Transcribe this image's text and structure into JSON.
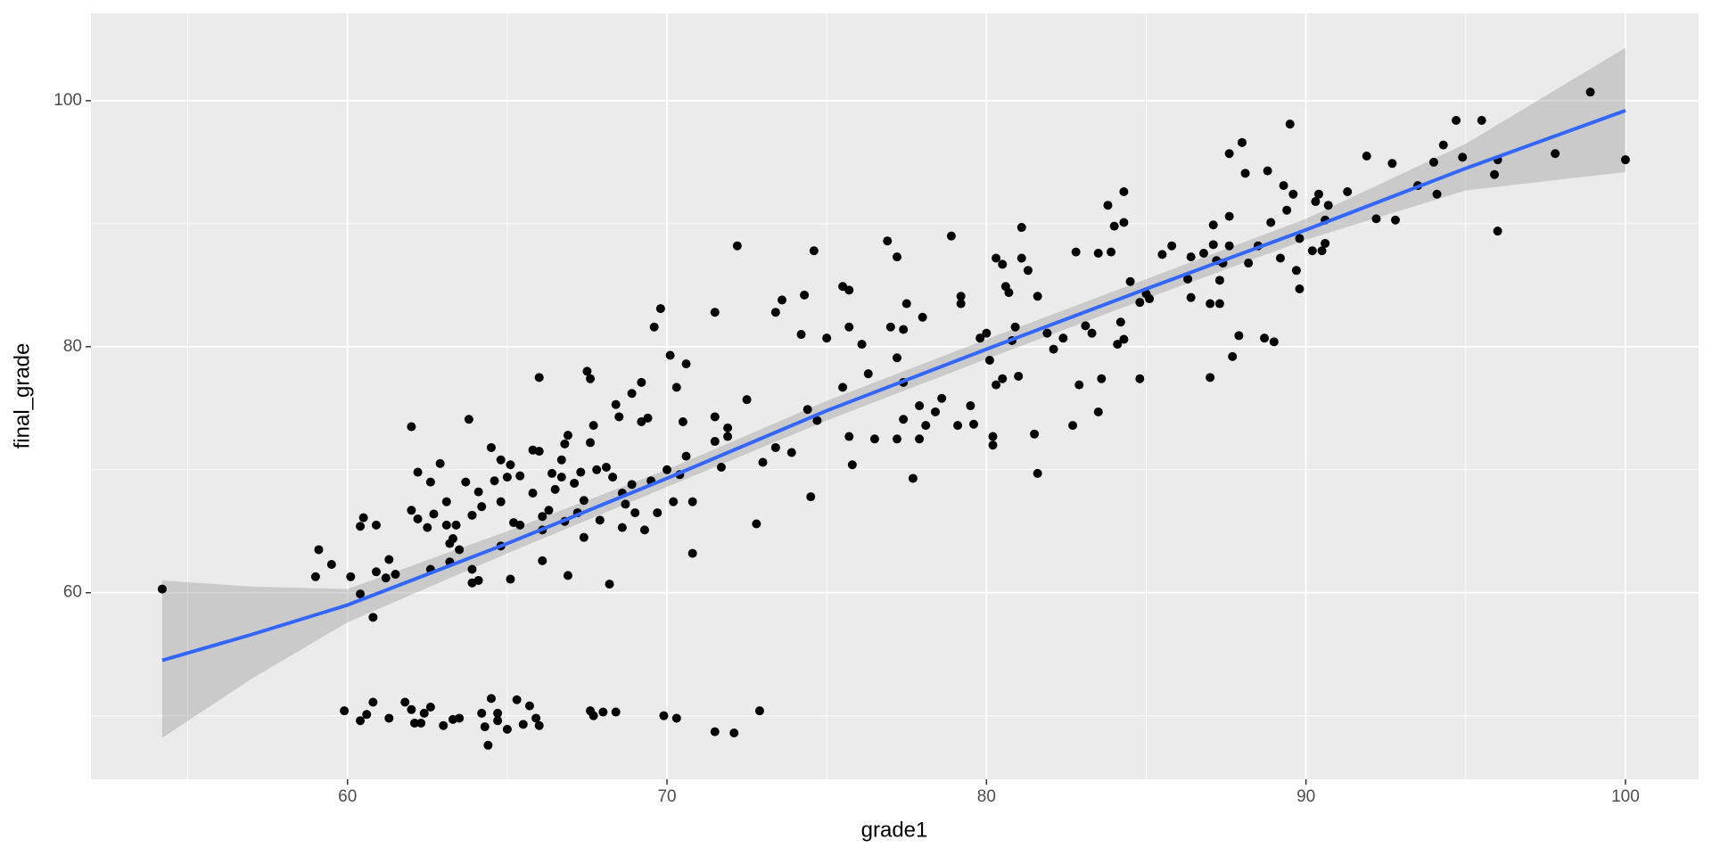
{
  "chart_data": {
    "type": "scatter",
    "x_label": "grade1",
    "y_label": "final_grade",
    "color": "#000000",
    "xlim": [
      51.97,
      102.29
    ],
    "ylim": [
      44.83,
      107.1
    ],
    "xticks": [
      60,
      70,
      80,
      90,
      100
    ],
    "yticks": [
      60,
      80,
      100
    ],
    "x_minor_ticks": [
      55,
      65,
      75,
      85,
      95
    ],
    "y_minor_ticks": [
      50,
      70,
      90
    ],
    "grid": true,
    "x": [
      54.2,
      59.9,
      60.4,
      60.6,
      60.8,
      61.3,
      61.8,
      62.0,
      62.1,
      62.3,
      62.4,
      62.6,
      63.0,
      63.3,
      63.5,
      64.2,
      64.3,
      64.4,
      64.5,
      64.7,
      64.7,
      65.0,
      65.3,
      65.5,
      65.7,
      65.9,
      66.0,
      67.6,
      67.7,
      68.0,
      68.4,
      69.9,
      70.3,
      71.5,
      72.1,
      72.9,
      59.0,
      59.1,
      59.5,
      60.1,
      60.4,
      60.5,
      60.4,
      60.8,
      60.9,
      60.9,
      61.2,
      61.3,
      61.5,
      62.0,
      62.0,
      62.2,
      62.2,
      62.5,
      62.6,
      62.6,
      62.7,
      62.9,
      63.1,
      63.1,
      63.2,
      63.2,
      63.3,
      63.4,
      63.5,
      63.7,
      63.8,
      63.9,
      63.9,
      63.9,
      64.1,
      64.2,
      64.1,
      64.5,
      64.6,
      64.8,
      64.8,
      64.8,
      65.0,
      65.1,
      65.1,
      65.2,
      65.4,
      65.4,
      65.8,
      65.8,
      66.0,
      66.0,
      66.1,
      66.1,
      66.1,
      66.3,
      66.4,
      66.5,
      66.7,
      66.7,
      66.8,
      66.8,
      66.9,
      66.9,
      67.1,
      67.2,
      67.3,
      67.4,
      67.4,
      67.5,
      67.6,
      67.6,
      67.7,
      67.8,
      67.9,
      68.1,
      68.2,
      68.3,
      68.4,
      68.5,
      68.6,
      68.6,
      68.7,
      68.9,
      68.9,
      69.0,
      69.2,
      69.2,
      69.3,
      69.4,
      69.5,
      69.6,
      69.7,
      69.8,
      70.0,
      70.1,
      70.2,
      70.3,
      70.4,
      70.5,
      70.6,
      70.6,
      70.8,
      70.8,
      71.5,
      71.7,
      71.9,
      72.2,
      72.5,
      71.5,
      71.9,
      71.5,
      72.8,
      73.0,
      73.4,
      73.6,
      74.3,
      74.6,
      74.2,
      73.4,
      73.9,
      74.4,
      74.5,
      74.7,
      75.0,
      75.5,
      75.7,
      75.7,
      75.5,
      75.7,
      75.8,
      76.1,
      76.3,
      76.5,
      76.9,
      77.2,
      77.0,
      77.2,
      77.2,
      77.4,
      77.4,
      77.5,
      77.4,
      77.7,
      77.9,
      78.0,
      78.1,
      77.9,
      78.4,
      78.6,
      78.9,
      79.2,
      79.2,
      79.1,
      79.5,
      79.6,
      79.8,
      80.0,
      80.1,
      80.2,
      80.2,
      80.3,
      80.5,
      80.6,
      80.7,
      80.3,
      80.5,
      80.8,
      80.9,
      81.0,
      81.1,
      81.1,
      81.3,
      81.5,
      81.6,
      81.6,
      81.9,
      82.1,
      82.4,
      82.7,
      82.8,
      82.9,
      83.1,
      83.3,
      83.5,
      83.5,
      83.6,
      83.8,
      83.9,
      84.0,
      84.1,
      84.2,
      84.3,
      84.3,
      84.3,
      84.5,
      84.8,
      84.8,
      85.0,
      85.1,
      85.5,
      85.8,
      86.3,
      86.4,
      86.4,
      86.8,
      87.0,
      87.0,
      87.1,
      87.1,
      87.2,
      87.3,
      87.3,
      87.4,
      87.6,
      87.6,
      87.6,
      87.7,
      87.9,
      88.0,
      88.1,
      88.2,
      88.5,
      88.7,
      88.8,
      88.9,
      89.0,
      89.2,
      89.3,
      89.4,
      89.5,
      89.6,
      89.7,
      89.8,
      89.8,
      90.2,
      90.3,
      90.4,
      90.5,
      90.6,
      90.6,
      90.7,
      91.3,
      91.9,
      92.2,
      92.7,
      92.8,
      93.5,
      94.0,
      94.1,
      94.3,
      94.7,
      94.9,
      95.5,
      95.9,
      96.0,
      96.0,
      97.8,
      98.9,
      100.0
    ],
    "y": [
      60.3,
      50.4,
      49.6,
      50.1,
      51.1,
      49.8,
      51.1,
      50.5,
      49.4,
      49.4,
      50.2,
      50.7,
      49.2,
      49.7,
      49.8,
      50.2,
      49.1,
      47.6,
      51.4,
      50.2,
      49.6,
      48.9,
      51.3,
      49.3,
      50.8,
      49.8,
      49.2,
      50.4,
      50.0,
      50.3,
      50.3,
      50.0,
      49.8,
      48.7,
      48.6,
      50.4,
      61.3,
      63.5,
      62.3,
      61.3,
      65.4,
      66.1,
      59.9,
      58.0,
      61.7,
      65.5,
      61.2,
      62.7,
      61.5,
      73.5,
      66.7,
      66.0,
      69.8,
      65.3,
      61.9,
      69.0,
      66.4,
      70.5,
      65.5,
      67.4,
      64.0,
      62.5,
      64.4,
      65.5,
      63.5,
      69.0,
      74.1,
      60.8,
      66.3,
      61.9,
      61.0,
      67.0,
      68.2,
      71.8,
      69.1,
      70.8,
      67.4,
      63.8,
      69.4,
      70.4,
      61.1,
      65.7,
      65.5,
      69.5,
      71.6,
      68.1,
      71.5,
      77.5,
      66.2,
      65.1,
      62.6,
      66.7,
      69.7,
      68.4,
      70.8,
      69.4,
      65.8,
      72.1,
      72.8,
      61.4,
      68.9,
      66.5,
      69.8,
      64.5,
      67.5,
      78.0,
      77.4,
      72.2,
      73.6,
      70.0,
      65.9,
      70.2,
      60.7,
      69.4,
      75.3,
      74.3,
      68.1,
      65.3,
      67.2,
      68.8,
      76.2,
      66.5,
      73.9,
      77.1,
      65.1,
      74.2,
      69.1,
      81.6,
      66.5,
      83.1,
      70.0,
      79.3,
      67.4,
      76.7,
      69.6,
      73.9,
      71.1,
      78.6,
      67.4,
      63.2,
      72.3,
      70.2,
      72.7,
      88.2,
      75.7,
      82.8,
      73.4,
      74.3,
      65.6,
      70.6,
      82.8,
      83.8,
      84.2,
      87.8,
      81.0,
      71.8,
      71.4,
      74.9,
      67.8,
      74.0,
      80.7,
      84.9,
      84.6,
      81.6,
      76.7,
      72.7,
      70.4,
      80.2,
      77.8,
      72.5,
      88.6,
      87.3,
      81.6,
      79.1,
      72.5,
      74.1,
      81.4,
      83.5,
      77.1,
      69.3,
      75.2,
      82.4,
      73.6,
      72.5,
      74.7,
      75.8,
      89.0,
      83.5,
      84.1,
      73.6,
      75.2,
      73.7,
      80.7,
      81.1,
      78.9,
      72.7,
      72.0,
      87.2,
      86.7,
      84.9,
      84.4,
      76.9,
      77.4,
      80.5,
      81.6,
      77.6,
      89.7,
      87.2,
      86.2,
      72.9,
      69.7,
      84.1,
      81.1,
      79.8,
      80.7,
      73.6,
      87.7,
      76.9,
      81.7,
      81.1,
      87.6,
      74.7,
      77.4,
      91.5,
      87.7,
      89.8,
      80.2,
      82.0,
      80.6,
      92.6,
      90.1,
      85.3,
      77.4,
      83.6,
      84.3,
      83.9,
      87.5,
      88.2,
      85.5,
      87.3,
      84.0,
      87.6,
      77.5,
      83.5,
      88.3,
      89.9,
      87.0,
      85.4,
      83.5,
      86.8,
      88.2,
      95.7,
      90.6,
      79.2,
      80.9,
      96.6,
      94.1,
      86.8,
      88.2,
      80.7,
      94.3,
      90.1,
      80.4,
      87.2,
      93.1,
      91.1,
      98.1,
      92.4,
      86.2,
      84.7,
      88.8,
      87.8,
      91.8,
      92.4,
      87.8,
      90.3,
      88.4,
      91.5,
      92.6,
      95.5,
      90.4,
      94.9,
      90.3,
      93.1,
      95.0,
      92.4,
      96.4,
      98.4,
      95.4,
      98.4,
      94.0,
      89.4,
      95.2,
      95.7,
      100.7,
      95.2
    ],
    "smooth": {
      "color": "#3366FF",
      "band_color": "#999999",
      "x": [
        54.2,
        57,
        60,
        65,
        70,
        75,
        80,
        85,
        90,
        95,
        100
      ],
      "y": [
        54.5,
        56.6,
        59.0,
        64.0,
        69.3,
        74.8,
        79.8,
        84.7,
        89.5,
        94.5,
        99.2
      ],
      "lower": [
        48.2,
        53.0,
        57.6,
        63.2,
        68.6,
        74.0,
        79.0,
        83.9,
        88.7,
        92.7,
        94.2
      ],
      "upper": [
        61.0,
        60.5,
        60.3,
        65.0,
        70.0,
        75.6,
        80.6,
        85.5,
        90.4,
        96.5,
        104.3
      ]
    }
  }
}
